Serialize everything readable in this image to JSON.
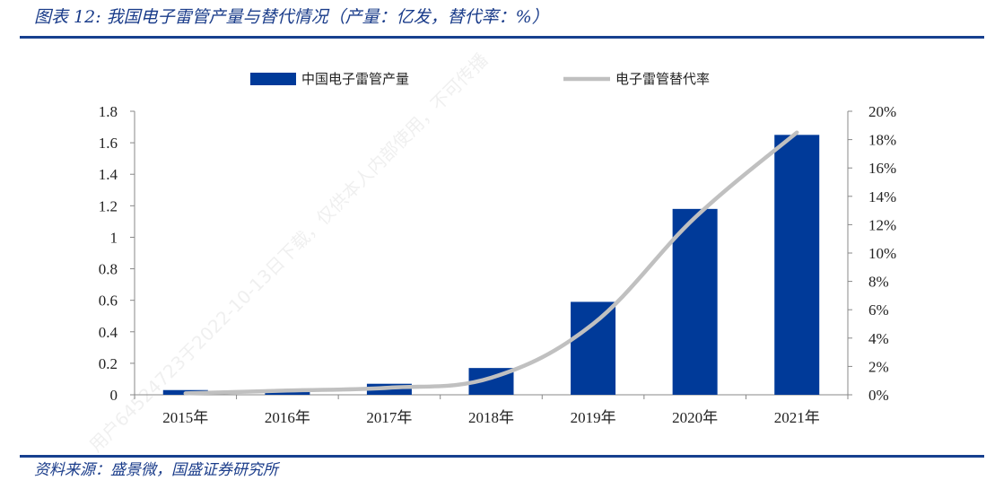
{
  "header": {
    "title": "图表 12:  我国电子雷管产量与替代情况（产量：亿发，替代率：%）"
  },
  "footer": {
    "source": "资料来源：盛景微，国盛证券研究所"
  },
  "watermark": {
    "text": "用户64524723于2022-10-13日下载，仅供本人内部使用，不可传播"
  },
  "colors": {
    "bar": "#003a99",
    "line": "#c0c0c0",
    "rule": "#17408f"
  },
  "chart_data": {
    "type": "bar",
    "categories": [
      "2015年",
      "2016年",
      "2017年",
      "2018年",
      "2019年",
      "2020年",
      "2021年"
    ],
    "series": [
      {
        "name": "中国电子雷管产量",
        "type": "bar",
        "axis": "left",
        "values": [
          0.03,
          0.03,
          0.07,
          0.17,
          0.59,
          1.18,
          1.65
        ]
      },
      {
        "name": "电子雷管替代率",
        "type": "line",
        "axis": "right",
        "values": [
          0.1,
          0.3,
          0.5,
          1.2,
          5.0,
          12.5,
          18.5
        ]
      }
    ],
    "y_left": {
      "min": 0,
      "max": 1.8,
      "ticks": [
        "0",
        "0.2",
        "0.4",
        "0.6",
        "0.8",
        "1",
        "1.2",
        "1.4",
        "1.6",
        "1.8"
      ]
    },
    "y_right": {
      "min": 0,
      "max": 20,
      "ticks": [
        "0%",
        "2%",
        "4%",
        "6%",
        "8%",
        "10%",
        "12%",
        "14%",
        "16%",
        "18%",
        "20%"
      ]
    },
    "legend_position": "top",
    "grid": false
  }
}
